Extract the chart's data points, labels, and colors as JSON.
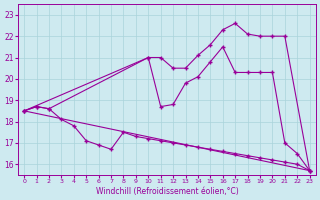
{
  "background_color": "#ceeaf0",
  "line_color": "#990099",
  "grid_color": "#aad4db",
  "xlabel": "Windchill (Refroidissement éolien,°C)",
  "ylim": [
    15.5,
    23.5
  ],
  "xlim": [
    -0.5,
    23.5
  ],
  "yticks": [
    16,
    17,
    18,
    19,
    20,
    21,
    22,
    23
  ],
  "xticks": [
    0,
    1,
    2,
    3,
    4,
    5,
    6,
    7,
    8,
    9,
    10,
    11,
    12,
    13,
    14,
    15,
    16,
    17,
    18,
    19,
    20,
    21,
    22,
    23
  ],
  "line1": {
    "x": [
      0,
      23
    ],
    "y": [
      18.5,
      15.7
    ]
  },
  "line2": {
    "x": [
      0,
      1,
      2,
      3,
      4,
      5,
      6,
      7,
      8,
      9,
      10,
      11,
      12,
      13,
      14,
      15,
      16,
      17,
      18,
      19,
      20,
      21,
      22,
      23
    ],
    "y": [
      18.5,
      18.7,
      18.6,
      18.1,
      17.8,
      17.1,
      16.9,
      16.7,
      17.5,
      17.3,
      17.2,
      17.1,
      17.0,
      16.9,
      16.8,
      16.7,
      16.6,
      16.5,
      16.4,
      16.3,
      16.2,
      16.1,
      16.0,
      15.7
    ]
  },
  "line3": {
    "x": [
      0,
      10,
      11,
      12,
      13,
      14,
      15,
      16,
      17,
      18,
      19,
      20,
      21,
      22,
      23
    ],
    "y": [
      18.5,
      21.0,
      18.7,
      18.8,
      19.8,
      20.1,
      20.8,
      21.5,
      20.3,
      20.3,
      20.3,
      20.3,
      17.0,
      16.5,
      15.7
    ]
  },
  "line4": {
    "x": [
      0,
      1,
      2,
      10,
      11,
      12,
      13,
      14,
      15,
      16,
      17,
      18,
      19,
      20,
      21,
      23
    ],
    "y": [
      18.5,
      18.7,
      18.6,
      21.0,
      21.0,
      20.5,
      20.5,
      21.1,
      21.6,
      22.3,
      22.6,
      22.1,
      22.0,
      22.0,
      22.0,
      15.7
    ]
  }
}
